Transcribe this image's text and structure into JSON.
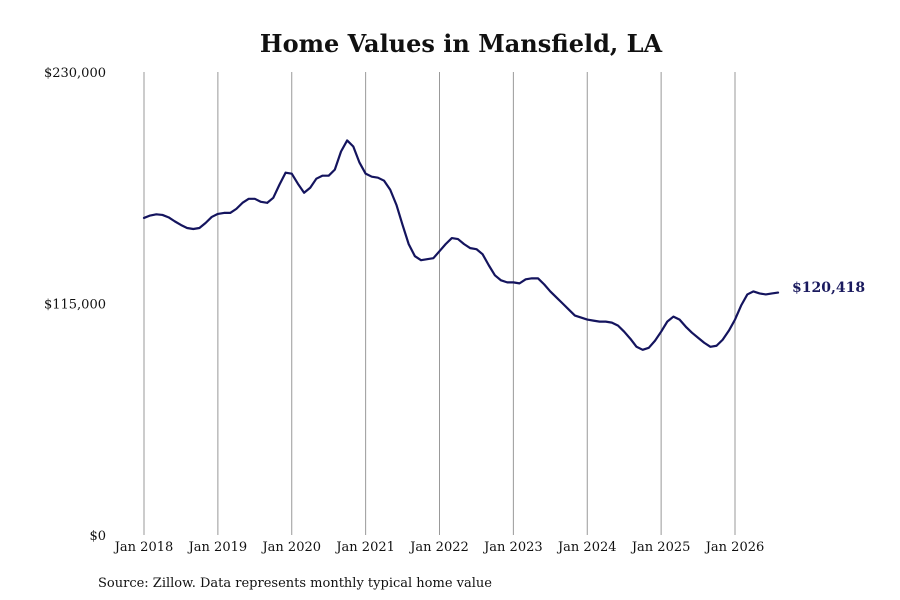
{
  "chart_data": {
    "type": "line",
    "title": "Home Values in Mansfield, LA",
    "source": "Source: Zillow. Data represents monthly typical home value",
    "line_color": "#14145e",
    "grid_color": "#999999",
    "grid": "vertical",
    "ylim": [
      0,
      230000
    ],
    "yticks": [
      {
        "value": 0,
        "label": "$0"
      },
      {
        "value": 115000,
        "label": "$115,000"
      },
      {
        "value": 230000,
        "label": "$230,000"
      }
    ],
    "xticks": [
      {
        "value": 2018,
        "label": "Jan 2018"
      },
      {
        "value": 2019,
        "label": "Jan 2019"
      },
      {
        "value": 2020,
        "label": "Jan 2020"
      },
      {
        "value": 2021,
        "label": "Jan 2021"
      },
      {
        "value": 2022,
        "label": "Jan 2022"
      },
      {
        "value": 2023,
        "label": "Jan 2023"
      },
      {
        "value": 2024,
        "label": "Jan 2024"
      },
      {
        "value": 2025,
        "label": "Jan 2025"
      },
      {
        "value": 2026,
        "label": "Jan 2026"
      }
    ],
    "end_label": "$120,418",
    "series": [
      {
        "x": [
          2018.0,
          2018.083,
          2018.167,
          2018.25,
          2018.333,
          2018.417,
          2018.5,
          2018.583,
          2018.667,
          2018.75,
          2018.833,
          2018.917,
          2019.0,
          2019.083,
          2019.167,
          2019.25,
          2019.333,
          2019.417,
          2019.5,
          2019.583,
          2019.667,
          2019.75,
          2019.833,
          2019.917,
          2020.0,
          2020.083,
          2020.167,
          2020.25,
          2020.333,
          2020.417,
          2020.5,
          2020.583,
          2020.667,
          2020.75,
          2020.833,
          2020.917,
          2021.0,
          2021.083,
          2021.167,
          2021.25,
          2021.333,
          2021.417,
          2021.5,
          2021.583,
          2021.667,
          2021.75,
          2021.833,
          2021.917,
          2022.0,
          2022.083,
          2022.167,
          2022.25,
          2022.333,
          2022.417,
          2022.5,
          2022.583,
          2022.667,
          2022.75,
          2022.833,
          2022.917,
          2023.0,
          2023.083,
          2023.167,
          2023.25,
          2023.333,
          2023.417,
          2023.5,
          2023.583,
          2023.667,
          2023.75,
          2023.833,
          2023.917,
          2024.0,
          2024.083,
          2024.167,
          2024.25,
          2024.333,
          2024.417,
          2024.5,
          2024.583,
          2024.667,
          2024.75,
          2024.833,
          2024.917,
          2025.0,
          2025.083,
          2025.167,
          2025.25,
          2025.333,
          2025.417,
          2025.5,
          2025.583,
          2025.667,
          2025.75,
          2025.833,
          2025.917,
          2026.0,
          2026.083,
          2026.167,
          2026.25,
          2026.333,
          2026.417,
          2026.5,
          2026.583
        ],
        "values": [
          157500,
          158700,
          159300,
          159000,
          157800,
          155800,
          154000,
          152500,
          152000,
          152500,
          155000,
          158000,
          159500,
          160000,
          160000,
          162000,
          165000,
          167000,
          167000,
          165500,
          165000,
          167500,
          174000,
          180000,
          179500,
          174500,
          170000,
          172500,
          177000,
          178500,
          178500,
          181500,
          190500,
          196000,
          193000,
          185000,
          179500,
          178000,
          177500,
          176000,
          171500,
          164000,
          154000,
          144500,
          138500,
          136500,
          137000,
          137500,
          141000,
          144500,
          147500,
          147000,
          144500,
          142500,
          142000,
          139500,
          134000,
          129000,
          126500,
          125500,
          125500,
          125000,
          127000,
          127500,
          127500,
          124500,
          121000,
          118000,
          115000,
          112000,
          109000,
          108000,
          107000,
          106500,
          106000,
          106000,
          105500,
          104000,
          101000,
          97500,
          93500,
          92000,
          93000,
          96500,
          101000,
          106000,
          108500,
          107000,
          103500,
          100500,
          98000,
          95500,
          93500,
          94000,
          97000,
          101500,
          107000,
          114000,
          119500,
          121000,
          120000,
          119500,
          120000,
          120418
        ]
      }
    ]
  }
}
